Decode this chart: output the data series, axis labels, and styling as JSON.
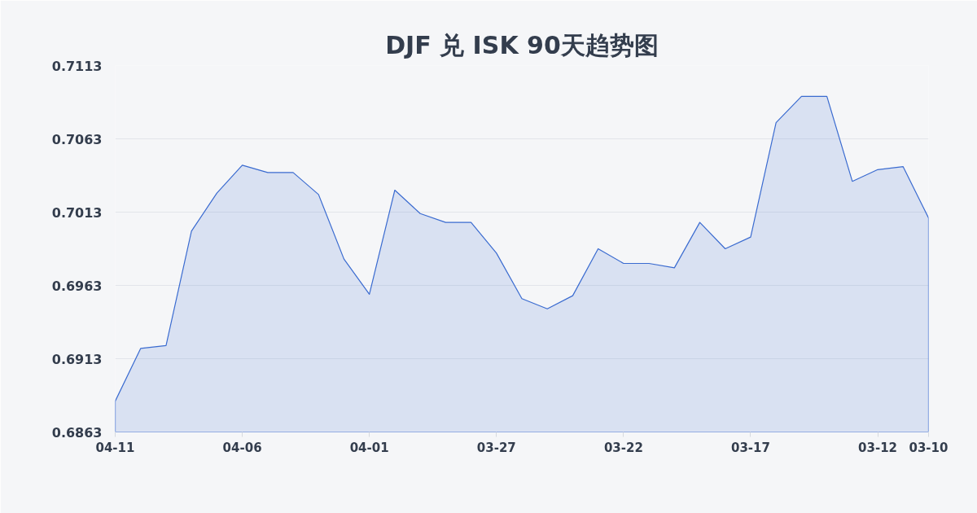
{
  "chart_data": {
    "type": "area",
    "title": "DJF 兑 ISK 90天趋势图",
    "categories": [
      "04-11",
      null,
      null,
      null,
      null,
      "04-06",
      null,
      null,
      null,
      null,
      "04-01",
      null,
      null,
      null,
      null,
      "03-27",
      null,
      null,
      null,
      null,
      "03-22",
      null,
      null,
      null,
      null,
      "03-17",
      null,
      null,
      null,
      null,
      "03-12",
      null,
      "03-10"
    ],
    "series": [
      {
        "color": "#3a6bd0",
        "values": [
          0.6884,
          0.692,
          0.6922,
          0.7,
          0.7026,
          0.7045,
          0.704,
          0.704,
          0.7025,
          0.6981,
          0.6957,
          0.7028,
          0.7012,
          0.7006,
          0.7006,
          0.6985,
          0.6954,
          0.6947,
          0.6956,
          0.6988,
          0.6978,
          0.6978,
          0.6975,
          0.7006,
          0.6988,
          0.6996,
          0.7074,
          0.7092,
          0.7092,
          0.7034,
          0.7042,
          0.7044,
          0.7009
        ]
      }
    ],
    "ylim": [
      0.6863,
      0.7113
    ],
    "yticks": [
      0.6863,
      0.6913,
      0.6963,
      0.7013,
      0.7063,
      0.7113
    ],
    "grid": "y"
  }
}
